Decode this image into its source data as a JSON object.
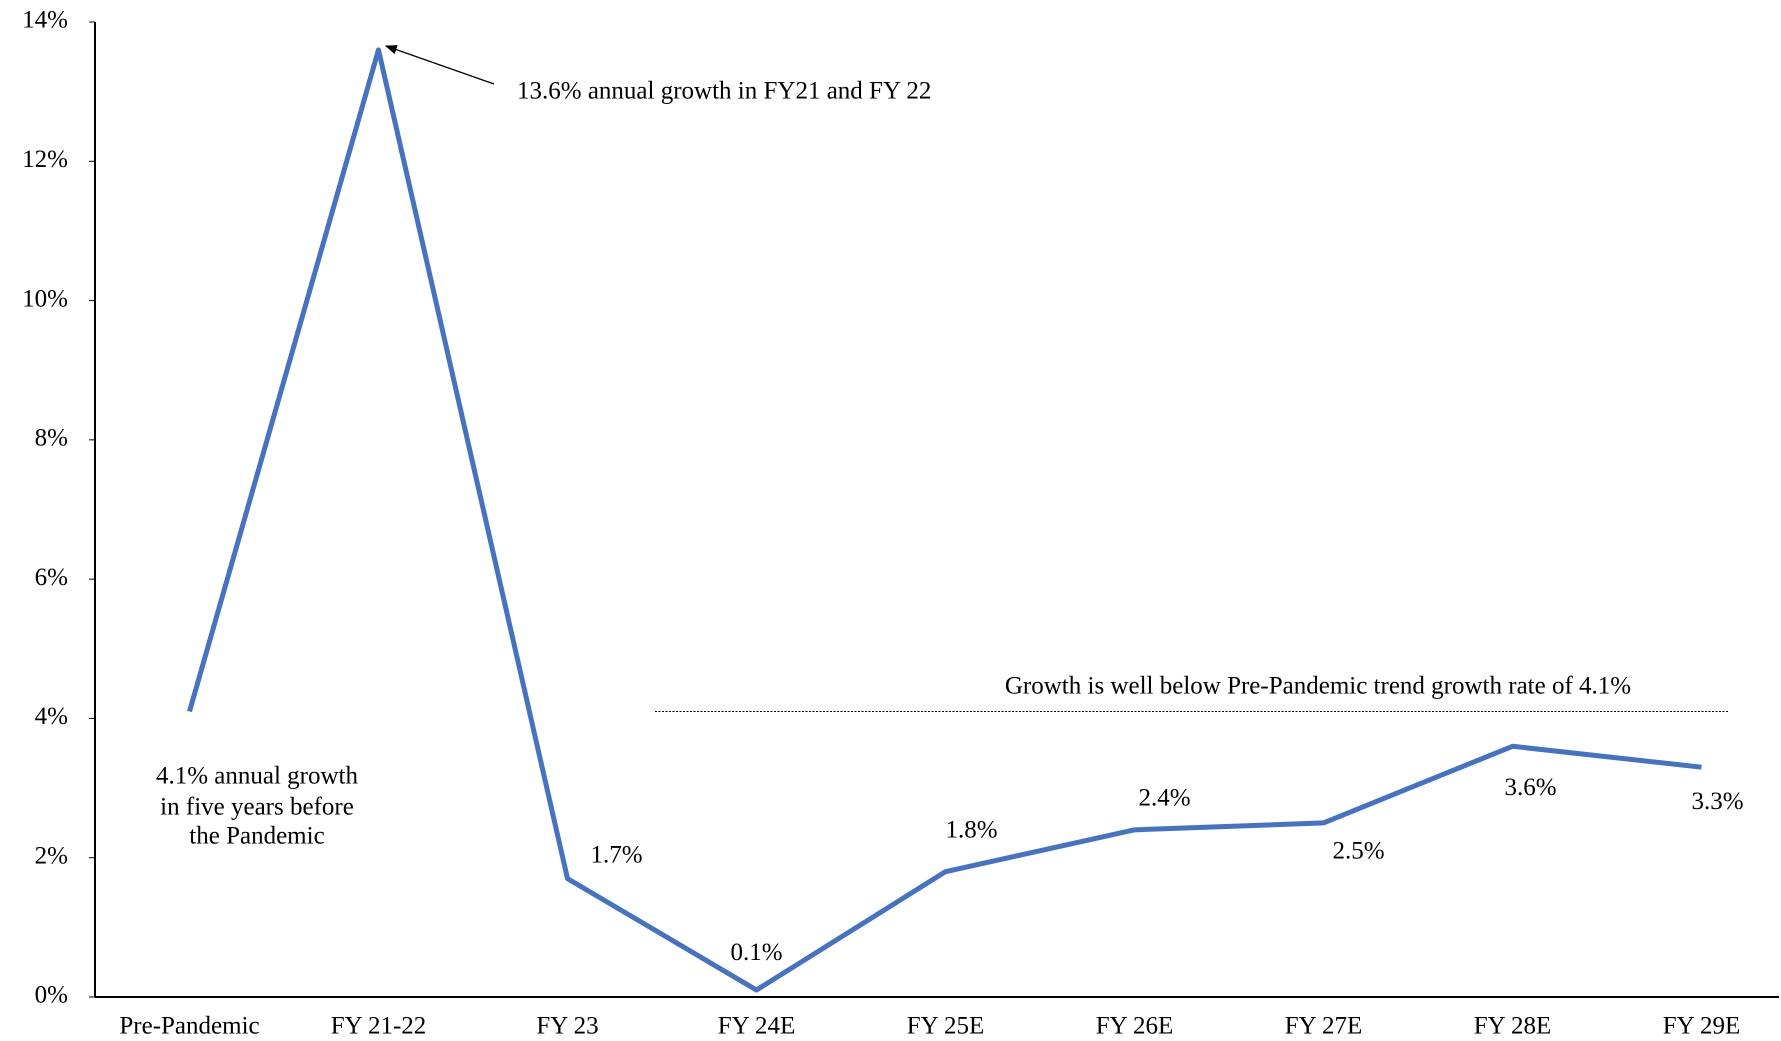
{
  "chart_data": {
    "type": "line",
    "categories": [
      "Pre-Pandemic",
      "FY 21-22",
      "FY 23",
      "FY 24E",
      "FY 25E",
      "FY 26E",
      "FY 27E",
      "FY 28E",
      "FY 29E"
    ],
    "series": [
      {
        "color": "#4472c4",
        "values": [
          4.1,
          13.6,
          1.7,
          0.1,
          1.8,
          2.4,
          2.5,
          3.6,
          3.3
        ],
        "value_labels": [
          null,
          null,
          "1.7%",
          "0.1%",
          "1.8%",
          "2.4%",
          "2.5%",
          "3.6%",
          "3.3%"
        ]
      }
    ],
    "ylim": [
      0,
      14
    ],
    "yticks": [
      {
        "value": 0,
        "label": "0%"
      },
      {
        "value": 2,
        "label": "2%"
      },
      {
        "value": 4,
        "label": "4%"
      },
      {
        "value": 6,
        "label": "6%"
      },
      {
        "value": 8,
        "label": "8%"
      },
      {
        "value": 10,
        "label": "10%"
      },
      {
        "value": 12,
        "label": "12%"
      },
      {
        "value": 14,
        "label": "14%"
      }
    ],
    "grid": false,
    "annotation_peak": "13.6% annual growth in FY21 and FY 22",
    "annotation_prepandemic": [
      "4.1% annual growth",
      "in five years before",
      "the Pandemic"
    ],
    "trend_line": 4.1,
    "annotation_trend": "Growth is well below Pre-Pandemic trend growth rate of 4.1%"
  }
}
